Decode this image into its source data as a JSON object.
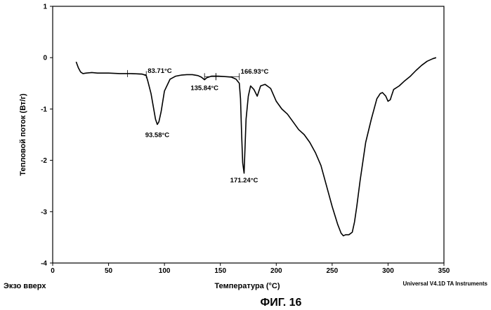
{
  "chart_data": {
    "type": "line",
    "title": "",
    "xlabel": "Температура (°C)",
    "ylabel": "Тепловой поток (Вт/г)",
    "xlim": [
      0,
      350
    ],
    "ylim": [
      -4,
      1
    ],
    "grid": false,
    "x_ticks": [
      "0",
      "50",
      "100",
      "150",
      "200",
      "250",
      "300",
      "350"
    ],
    "y_ticks": [
      "1",
      "0",
      "-1",
      "-2",
      "-3",
      "-4"
    ],
    "series": [
      {
        "x": [
          21,
          23,
          25,
          27,
          30,
          35,
          40,
          50,
          60,
          70,
          80,
          83.71,
          85,
          88,
          90,
          92,
          93.58,
          95,
          97,
          100,
          105,
          110,
          115,
          120,
          125,
          130,
          133,
          135.84,
          138,
          142,
          148,
          155,
          160,
          164,
          166.93,
          168,
          169,
          170,
          171.24,
          172,
          173,
          175,
          177,
          180,
          183,
          186,
          190,
          195,
          200,
          205,
          210,
          215,
          220,
          225,
          230,
          235,
          240,
          245,
          250,
          255,
          258,
          260,
          262,
          265,
          268,
          270,
          272,
          275,
          280,
          285,
          290,
          293,
          295,
          298,
          300,
          302,
          303,
          305,
          310,
          315,
          320,
          325,
          330,
          335,
          340,
          343
        ],
        "y": [
          -0.08,
          -0.2,
          -0.28,
          -0.31,
          -0.3,
          -0.29,
          -0.3,
          -0.3,
          -0.31,
          -0.31,
          -0.32,
          -0.35,
          -0.45,
          -0.7,
          -0.95,
          -1.2,
          -1.3,
          -1.25,
          -1.05,
          -0.65,
          -0.42,
          -0.36,
          -0.34,
          -0.33,
          -0.33,
          -0.35,
          -0.38,
          -0.43,
          -0.39,
          -0.36,
          -0.36,
          -0.37,
          -0.38,
          -0.42,
          -0.5,
          -0.8,
          -1.5,
          -2.05,
          -2.25,
          -1.8,
          -1.2,
          -0.75,
          -0.55,
          -0.62,
          -0.75,
          -0.55,
          -0.52,
          -0.6,
          -0.85,
          -1.0,
          -1.1,
          -1.25,
          -1.4,
          -1.5,
          -1.65,
          -1.85,
          -2.1,
          -2.5,
          -2.9,
          -3.25,
          -3.42,
          -3.47,
          -3.45,
          -3.45,
          -3.4,
          -3.2,
          -2.9,
          -2.4,
          -1.65,
          -1.2,
          -0.8,
          -0.7,
          -0.68,
          -0.75,
          -0.85,
          -0.82,
          -0.75,
          -0.62,
          -0.55,
          -0.45,
          -0.36,
          -0.25,
          -0.15,
          -0.07,
          -0.02,
          0.0
        ]
      }
    ],
    "annotations": [
      {
        "text": "83.71°C",
        "x": 83.71,
        "y": -0.35
      },
      {
        "text": "93.58°C",
        "x": 93.58,
        "y": -1.3
      },
      {
        "text": "135.84°C",
        "x": 135.84,
        "y": -0.43
      },
      {
        "text": "166.93°C",
        "x": 166.93,
        "y": -0.38
      },
      {
        "text": "171.24°C",
        "x": 171.24,
        "y": -2.25
      }
    ],
    "baseline_markers": [
      {
        "x1": 67,
        "y1": -0.31,
        "x2": 83.71,
        "y2": -0.33
      },
      {
        "x1": 135.84,
        "y1": -0.37,
        "x2": 146,
        "y2": -0.37
      },
      {
        "x1": 146,
        "y1": -0.37,
        "x2": 166.93,
        "y2": -0.37
      }
    ]
  },
  "footer": {
    "left_text": "Экзо вверх",
    "right_text": "Universal V4.1D TA Instruments",
    "figure_label": "ФИГ. 16"
  },
  "colors": {
    "line": "#000000",
    "background": "#ffffff"
  }
}
